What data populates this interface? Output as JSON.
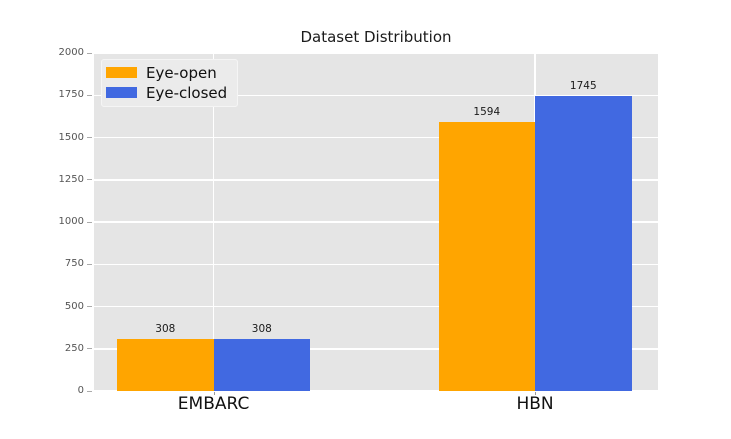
{
  "chart_data": {
    "type": "bar",
    "title": "Dataset Distribution",
    "categories": [
      "EMBARC",
      "HBN"
    ],
    "series": [
      {
        "name": "Eye-open",
        "color": "#FFA500",
        "values": [
          308,
          1594
        ]
      },
      {
        "name": "Eye-closed",
        "color": "#4169E1",
        "values": [
          308,
          1745
        ]
      }
    ],
    "ylim": [
      0,
      2000
    ],
    "y_ticks": [
      0,
      250,
      500,
      750,
      1000,
      1250,
      1500,
      1750,
      2000
    ],
    "bar_labels_shown": true,
    "legend_position": "upper-left",
    "grid": true,
    "styles": {
      "plot_background": "#E5E5E5",
      "grid_color": "#FFFFFF",
      "y_tick_label_color": "#555555",
      "text_color": "#1A1A1A",
      "figure_background": "#FFFFFF"
    }
  }
}
